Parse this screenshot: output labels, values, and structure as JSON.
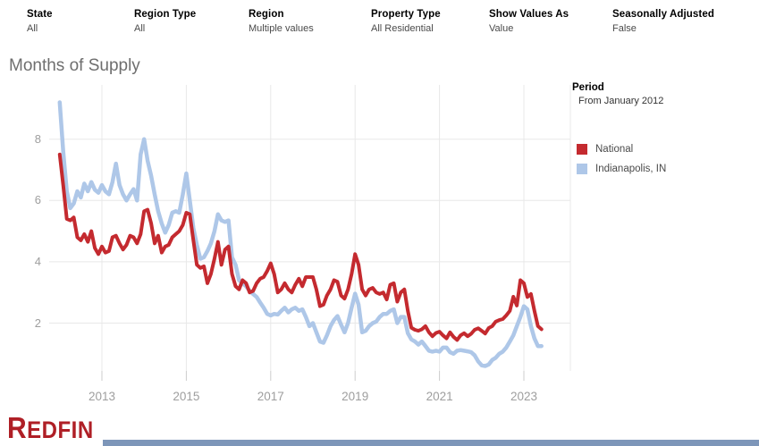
{
  "title": "Months of Supply",
  "filters": [
    {
      "label": "State",
      "value": "All"
    },
    {
      "label": "Region Type",
      "value": "All"
    },
    {
      "label": "Region",
      "value": "Multiple values"
    },
    {
      "label": "Property Type",
      "value": "All Residential"
    },
    {
      "label": "Show Values As",
      "value": "Value"
    },
    {
      "label": "Seasonally Adjusted",
      "value": "False"
    }
  ],
  "period": {
    "label": "Period",
    "value": "From January 2012"
  },
  "legend": [
    {
      "label": "National",
      "color": "#c42a2f"
    },
    {
      "label": "Indianapolis, IN",
      "color": "#aec7e8"
    }
  ],
  "logo_text": "Redfin",
  "colors": {
    "national_line": "#c42a2f",
    "indianapolis_line": "#aec7e8",
    "gridline": "#e8e8e8",
    "tick": "#cccccc",
    "axis_text": "#9e9e9e",
    "title_text": "#6e6e6e",
    "logo_red": "#af1f26",
    "bottom_bar": "#7d96b9"
  },
  "chart_data": {
    "type": "line",
    "title": "Months of Supply",
    "x_start": "2012-01",
    "x_end": "2023-06",
    "points_per_year": 12,
    "x_tick_labels": [
      "2013",
      "2015",
      "2017",
      "2019",
      "2021",
      "2023"
    ],
    "y_ticks": [
      2,
      4,
      6,
      8
    ],
    "ylim": [
      0,
      9.8
    ],
    "grid": true,
    "legend_position": "right",
    "series": [
      {
        "name": "National",
        "color": "#c42a2f",
        "values": [
          7.5,
          6.5,
          5.4,
          5.35,
          5.45,
          4.8,
          4.7,
          4.9,
          4.65,
          5.0,
          4.45,
          4.25,
          4.5,
          4.3,
          4.35,
          4.8,
          4.85,
          4.6,
          4.4,
          4.55,
          4.85,
          4.8,
          4.6,
          4.9,
          5.65,
          5.7,
          5.25,
          4.6,
          4.85,
          4.3,
          4.5,
          4.55,
          4.8,
          4.9,
          5.0,
          5.2,
          5.6,
          5.55,
          4.7,
          3.9,
          3.8,
          3.85,
          3.3,
          3.6,
          4.1,
          4.65,
          3.9,
          4.4,
          4.5,
          3.6,
          3.2,
          3.1,
          3.4,
          3.3,
          3.0,
          3.05,
          3.3,
          3.45,
          3.5,
          3.7,
          3.95,
          3.6,
          3.0,
          3.1,
          3.3,
          3.1,
          3.0,
          3.25,
          3.45,
          3.2,
          3.5,
          3.5,
          3.5,
          3.1,
          2.55,
          2.6,
          2.9,
          3.1,
          3.4,
          3.35,
          2.9,
          2.8,
          3.1,
          3.6,
          4.25,
          3.9,
          3.1,
          2.9,
          3.1,
          3.15,
          3.0,
          2.95,
          3.0,
          2.77,
          3.25,
          3.3,
          2.7,
          3.0,
          3.1,
          2.4,
          1.85,
          1.78,
          1.75,
          1.8,
          1.9,
          1.7,
          1.57,
          1.68,
          1.72,
          1.6,
          1.5,
          1.7,
          1.55,
          1.45,
          1.6,
          1.67,
          1.57,
          1.65,
          1.78,
          1.83,
          1.75,
          1.66,
          1.84,
          1.9,
          2.05,
          2.1,
          2.13,
          2.25,
          2.4,
          2.86,
          2.57,
          3.4,
          3.3,
          2.85,
          2.95,
          2.4,
          1.9,
          1.8
        ]
      },
      {
        "name": "Indianapolis, IN",
        "color": "#aec7e8",
        "values": [
          9.2,
          7.6,
          6.3,
          5.75,
          5.9,
          6.3,
          6.1,
          6.55,
          6.3,
          6.6,
          6.35,
          6.25,
          6.5,
          6.3,
          6.2,
          6.6,
          7.2,
          6.5,
          6.2,
          6.0,
          6.2,
          6.37,
          6.0,
          7.5,
          8.0,
          7.3,
          6.8,
          6.2,
          5.65,
          5.25,
          4.95,
          5.2,
          5.6,
          5.65,
          5.6,
          6.2,
          6.88,
          6.0,
          5.1,
          4.55,
          4.1,
          4.15,
          4.35,
          4.6,
          5.0,
          5.55,
          5.35,
          5.3,
          5.35,
          4.15,
          3.9,
          3.4,
          3.3,
          3.2,
          3.05,
          2.95,
          2.85,
          2.67,
          2.5,
          2.3,
          2.25,
          2.3,
          2.28,
          2.4,
          2.5,
          2.35,
          2.45,
          2.5,
          2.4,
          2.45,
          2.2,
          1.9,
          2.0,
          1.7,
          1.4,
          1.36,
          1.6,
          1.9,
          2.1,
          2.23,
          1.95,
          1.7,
          2.0,
          2.5,
          2.96,
          2.6,
          1.7,
          1.75,
          1.9,
          2.0,
          2.05,
          2.2,
          2.3,
          2.3,
          2.4,
          2.45,
          2.0,
          2.2,
          2.2,
          1.67,
          1.47,
          1.4,
          1.3,
          1.4,
          1.25,
          1.1,
          1.07,
          1.1,
          1.07,
          1.2,
          1.2,
          1.05,
          1.0,
          1.1,
          1.12,
          1.1,
          1.08,
          1.05,
          0.95,
          0.75,
          0.62,
          0.6,
          0.65,
          0.8,
          0.87,
          1.0,
          1.07,
          1.2,
          1.4,
          1.6,
          1.9,
          2.2,
          2.55,
          2.45,
          1.9,
          1.5,
          1.25,
          1.25
        ]
      }
    ]
  }
}
